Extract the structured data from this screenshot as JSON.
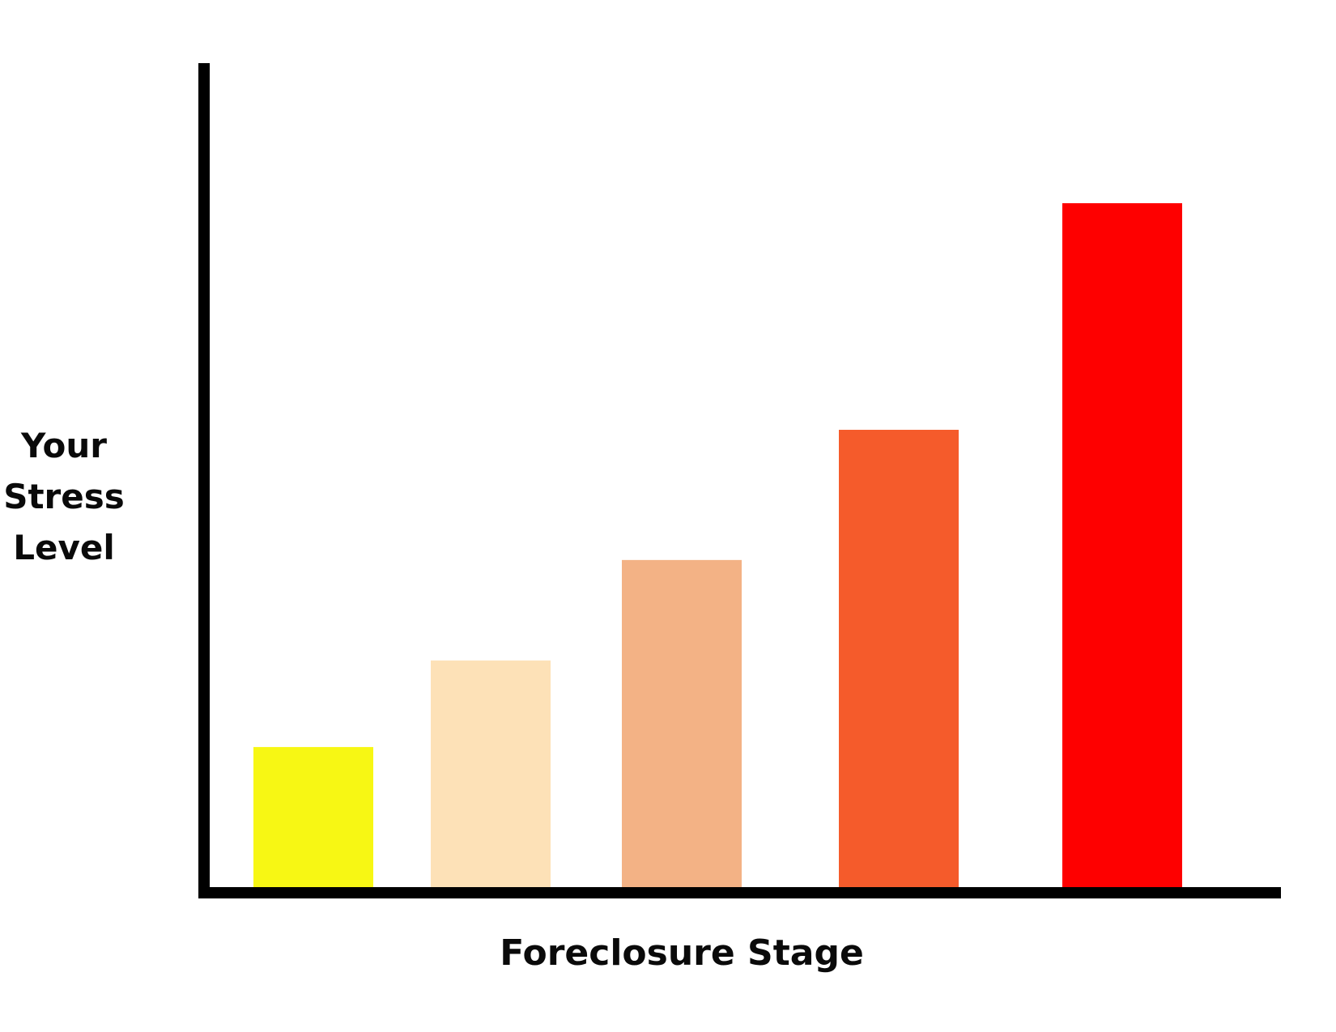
{
  "chart_data": {
    "type": "bar",
    "title": "",
    "xlabel": "Foreclosure Stage",
    "ylabel_lines": [
      "Your",
      "Stress",
      "Level"
    ],
    "ylim": [
      0,
      100
    ],
    "grid": false,
    "legend": "none",
    "categories": [
      "",
      "",
      "",
      "",
      ""
    ],
    "values": [
      17,
      27.5,
      39.7,
      55.5,
      83
    ],
    "colors": [
      "#F7F714",
      "#FDE1B7",
      "#F3B285",
      "#F55B2B",
      "#FE0000"
    ]
  },
  "styles": {
    "axis_color": "#000000",
    "background": "#FFFFFF"
  }
}
